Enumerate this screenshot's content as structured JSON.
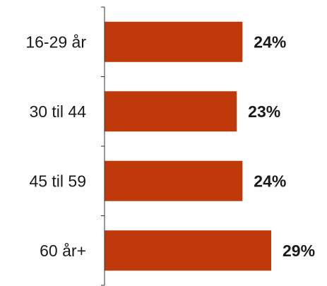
{
  "chart_data": {
    "type": "bar",
    "orientation": "horizontal",
    "categories": [
      "16-29 år",
      "30 til 44",
      "45 til 59",
      "60 år+"
    ],
    "values": [
      24,
      23,
      24,
      29
    ],
    "value_labels": [
      "24%",
      "23%",
      "24%",
      "29%"
    ],
    "title": "",
    "xlabel": "",
    "ylabel": "",
    "xlim": [
      0,
      34
    ],
    "grid": false,
    "legend": "none",
    "bar_color": "#c0390b",
    "text_color": "#1a1a1a",
    "axis_color": "#333333"
  }
}
